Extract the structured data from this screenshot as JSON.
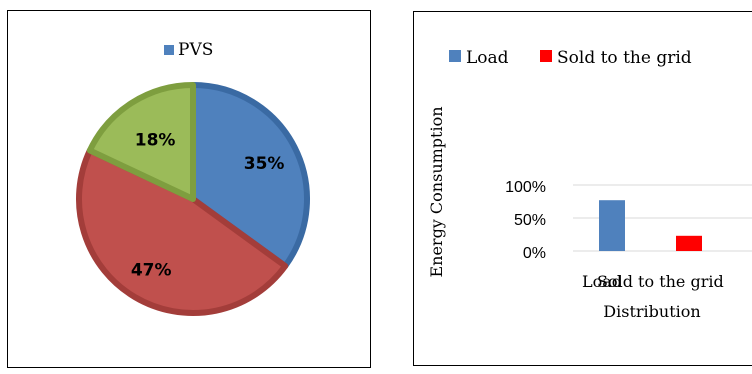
{
  "chart_data": [
    {
      "type": "pie",
      "legend": [
        {
          "label": "PVS",
          "color": "#4f81bd"
        }
      ],
      "slices": [
        {
          "label": "35%",
          "value": 35,
          "color": "#4f81bd",
          "edge": "#3a6aa3"
        },
        {
          "label": "47%",
          "value": 47,
          "color": "#c0504d",
          "edge": "#a33d3a"
        },
        {
          "label": "18%",
          "value": 18,
          "color": "#9bbb59",
          "edge": "#7e9e3f"
        }
      ]
    },
    {
      "type": "bar",
      "categories": [
        "Load",
        "Sold to the grid"
      ],
      "values": [
        77,
        23
      ],
      "colors": [
        "#4f81bd",
        "#ff0000"
      ],
      "legend": [
        {
          "label": "Load",
          "color": "#4f81bd"
        },
        {
          "label": "Sold to the grid",
          "color": "#ff0000"
        }
      ],
      "xlabel": "Distribution",
      "ylabel": "Energy Consumption",
      "yticks": [
        "0%",
        "50%",
        "100%"
      ],
      "ylim": [
        0,
        100
      ]
    }
  ]
}
